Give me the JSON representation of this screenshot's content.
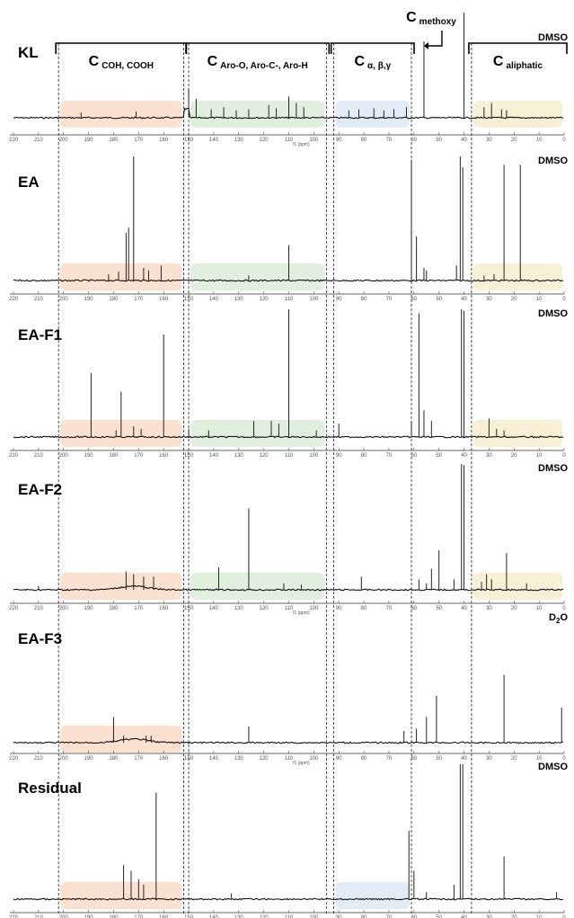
{
  "chart_data": {
    "type": "nmr-spectra-stack",
    "x_axis": {
      "unit": "f1 (ppm)",
      "xlim": [
        220,
        0
      ],
      "reversed": true,
      "ticks": [
        220,
        210,
        200,
        190,
        180,
        170,
        160,
        150,
        140,
        130,
        120,
        110,
        100,
        90,
        80,
        70,
        60,
        50,
        40,
        30,
        20,
        10,
        0
      ]
    },
    "region_dividers_ppm": [
      202,
      152,
      150,
      95,
      92,
      61,
      37
    ],
    "regions": [
      {
        "id": "coh",
        "main": "C",
        "sub": "COH, COOH",
        "range": [
          202,
          152
        ],
        "color": "#f7c9a8"
      },
      {
        "id": "aro",
        "main": "C",
        "sub": "Aro-O, Aro-C-, Aro-H",
        "range": [
          150,
          95
        ],
        "color": "#c9e3c3"
      },
      {
        "id": "abg",
        "main": "C",
        "sub": "α, β,γ",
        "range": [
          92,
          61
        ],
        "color": "#c8dcf0"
      },
      {
        "id": "aliph",
        "main": "C",
        "sub": "aliphatic",
        "range": [
          37,
          0
        ],
        "color": "#f3e4b3"
      }
    ],
    "methoxy": {
      "main": "C",
      "sub": "methoxy"
    },
    "series": [
      {
        "name": "KL",
        "solvent": "DMSO",
        "solvent_sub": "",
        "highlights": [
          "coh",
          "aro",
          "abg",
          "aliph"
        ],
        "show_unit": true,
        "peaks": [
          [
            150,
            0.28
          ],
          [
            147,
            0.18
          ],
          [
            141,
            0.08
          ],
          [
            136,
            0.1
          ],
          [
            131,
            0.07
          ],
          [
            126,
            0.08
          ],
          [
            118,
            0.12
          ],
          [
            115,
            0.09
          ],
          [
            110,
            0.2
          ],
          [
            107,
            0.14
          ],
          [
            104,
            0.1
          ],
          [
            86,
            0.07
          ],
          [
            82,
            0.08
          ],
          [
            76,
            0.09
          ],
          [
            72,
            0.07
          ],
          [
            68,
            0.08
          ],
          [
            63,
            0.1
          ],
          [
            56,
            0.72
          ],
          [
            40,
            1.05
          ],
          [
            32,
            0.1
          ],
          [
            29,
            0.14
          ],
          [
            25,
            0.08
          ],
          [
            23,
            0.07
          ],
          [
            171,
            0.06
          ],
          [
            193,
            0.05
          ]
        ]
      },
      {
        "name": "EA",
        "solvent": "DMSO",
        "solvent_sub": "",
        "highlights": [
          "coh",
          "aro",
          "aliph"
        ],
        "show_unit": false,
        "peaks": [
          [
            172,
            1.0
          ],
          [
            174,
            0.42
          ],
          [
            175,
            0.38
          ],
          [
            168,
            0.1
          ],
          [
            166,
            0.08
          ],
          [
            178,
            0.07
          ],
          [
            161,
            0.12
          ],
          [
            182,
            0.05
          ],
          [
            110,
            0.28
          ],
          [
            126,
            0.04
          ],
          [
            61,
            0.96
          ],
          [
            59,
            0.35
          ],
          [
            56,
            0.1
          ],
          [
            55,
            0.08
          ],
          [
            43,
            0.12
          ],
          [
            41.5,
            1.04
          ],
          [
            40.5,
            0.9
          ],
          [
            24,
            0.92
          ],
          [
            17.5,
            0.92
          ],
          [
            28,
            0.05
          ],
          [
            32,
            0.04
          ]
        ]
      },
      {
        "name": "EA-F1",
        "solvent": "DMSO",
        "solvent_sub": "",
        "highlights": [
          "coh",
          "aro",
          "aliph"
        ],
        "show_unit": false,
        "peaks": [
          [
            189,
            0.48
          ],
          [
            177,
            0.34
          ],
          [
            160,
            0.77
          ],
          [
            172,
            0.08
          ],
          [
            169,
            0.06
          ],
          [
            179,
            0.05
          ],
          [
            110,
            1.0
          ],
          [
            124,
            0.12
          ],
          [
            117,
            0.12
          ],
          [
            114,
            0.1
          ],
          [
            142,
            0.05
          ],
          [
            150,
            0.06
          ],
          [
            99,
            0.05
          ],
          [
            90,
            0.1
          ],
          [
            61,
            0.12
          ],
          [
            58,
            0.93
          ],
          [
            56,
            0.2
          ],
          [
            53,
            0.12
          ],
          [
            41,
            1.05
          ],
          [
            40,
            0.95
          ],
          [
            30,
            0.14
          ],
          [
            27,
            0.06
          ],
          [
            24,
            0.05
          ]
        ]
      },
      {
        "name": "EA-F2",
        "solvent": "DMSO",
        "solvent_sub": "",
        "highlights": [
          "coh",
          "aro",
          "aliph"
        ],
        "show_unit": true,
        "peaks": [
          [
            175,
            0.14
          ],
          [
            172,
            0.12
          ],
          [
            168,
            0.1
          ],
          [
            164,
            0.1
          ],
          [
            210,
            0.03
          ],
          [
            138,
            0.17
          ],
          [
            126,
            0.62
          ],
          [
            112,
            0.05
          ],
          [
            105,
            0.04
          ],
          [
            81,
            0.1
          ],
          [
            58,
            0.08
          ],
          [
            55,
            0.05
          ],
          [
            53,
            0.16
          ],
          [
            50,
            0.3
          ],
          [
            44,
            0.08
          ],
          [
            41,
            1.05
          ],
          [
            40,
            0.95
          ],
          [
            23,
            0.28
          ],
          [
            31,
            0.12
          ],
          [
            29,
            0.08
          ],
          [
            33,
            0.06
          ],
          [
            15,
            0.05
          ]
        ]
      },
      {
        "name": "EA-F3",
        "solvent": "D",
        "solvent_sub": "2",
        "solvent_suffix": "O",
        "highlights": [
          "coh"
        ],
        "show_unit": true,
        "peaks": [
          [
            180,
            0.22
          ],
          [
            176,
            0.06
          ],
          [
            167,
            0.06
          ],
          [
            165,
            0.06
          ],
          [
            126,
            0.14
          ],
          [
            64,
            0.1
          ],
          [
            59,
            0.12
          ],
          [
            55,
            0.22
          ],
          [
            51,
            0.4
          ],
          [
            24,
            0.58
          ],
          [
            1,
            0.3
          ]
        ]
      },
      {
        "name": "Residual",
        "solvent": "DMSO",
        "solvent_sub": "",
        "highlights": [
          "coh",
          "abg"
        ],
        "show_unit": false,
        "peaks": [
          [
            163,
            0.75
          ],
          [
            176,
            0.24
          ],
          [
            173,
            0.2
          ],
          [
            170,
            0.14
          ],
          [
            168,
            0.1
          ],
          [
            133,
            0.04
          ],
          [
            62,
            0.48
          ],
          [
            60,
            0.2
          ],
          [
            55,
            0.05
          ],
          [
            44,
            0.1
          ],
          [
            41.5,
            0.95
          ],
          [
            40.5,
            0.95
          ],
          [
            24,
            0.3
          ],
          [
            3,
            0.05
          ]
        ]
      }
    ]
  }
}
